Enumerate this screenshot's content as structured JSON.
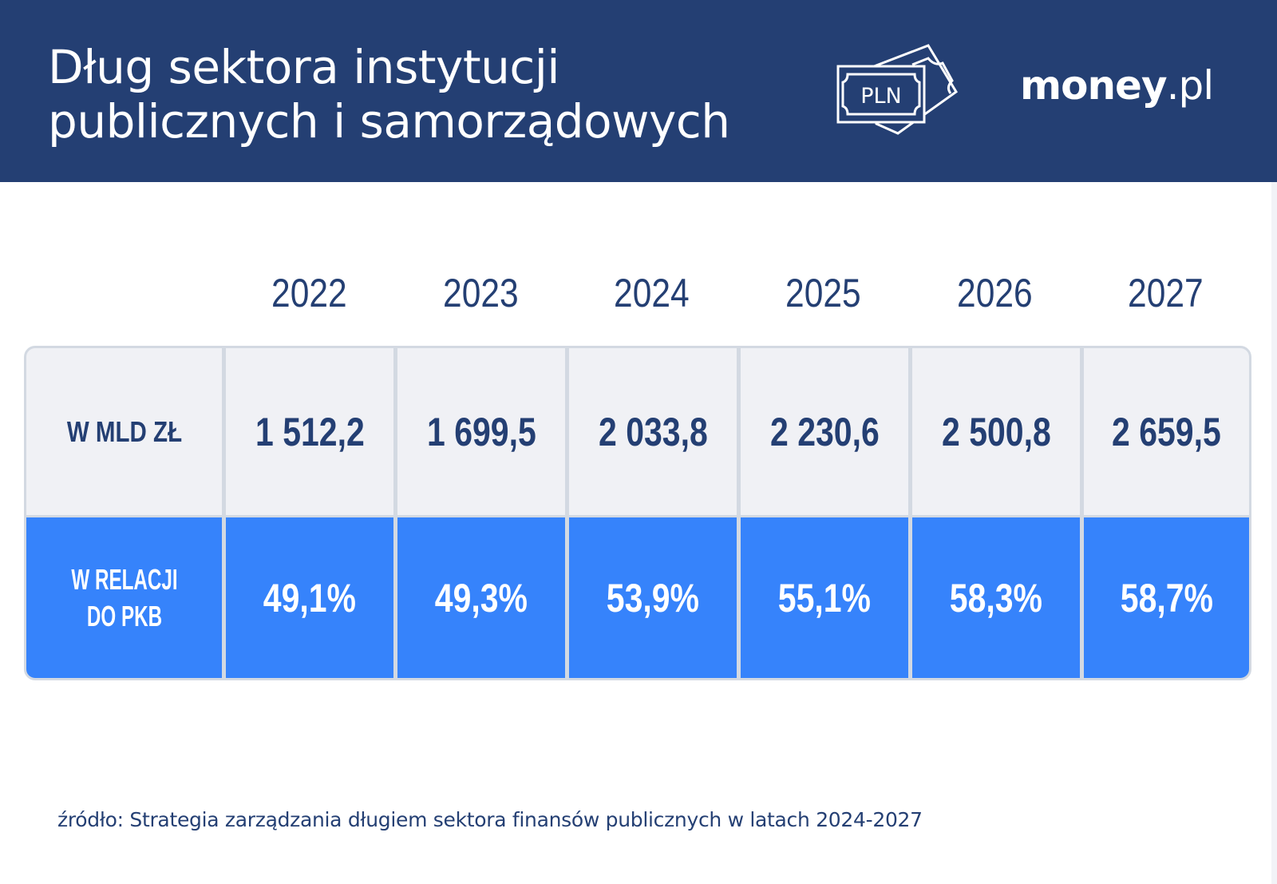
{
  "header": {
    "title_lines": [
      "Dług sektora instytucji",
      "publicznych i samorządowych"
    ],
    "pln_icon_text": "PLN",
    "logo": {
      "bold": "money",
      "light": ".pl"
    }
  },
  "colors": {
    "header_bg": "#243f73",
    "row_light": "#f0f1f5",
    "row_blue": "#3683fb",
    "text_dark": "#243f73"
  },
  "table": {
    "years": [
      "2022",
      "2023",
      "2024",
      "2025",
      "2026",
      "2027"
    ],
    "rows": [
      {
        "label": "W MLD ZŁ",
        "values": [
          "1 512,2",
          "1 699,5",
          "2 033,8",
          "2 230,6",
          "2 500,8",
          "2 659,5"
        ]
      },
      {
        "label_lines": [
          "W RELACJI",
          "DO PKB"
        ],
        "values": [
          "49,1%",
          "49,3%",
          "53,9%",
          "55,1%",
          "58,3%",
          "58,7%"
        ]
      }
    ]
  },
  "source": "źródło: Strategia zarządzania długiem sektora finansów publicznych w latach 2024-2027"
}
